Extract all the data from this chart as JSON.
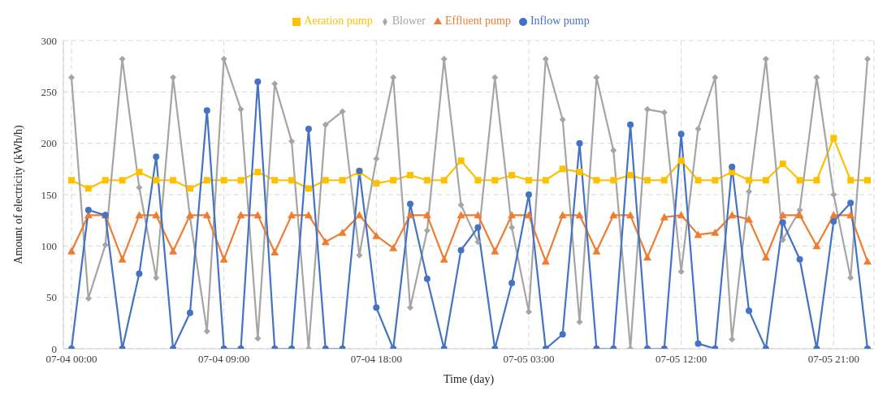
{
  "chart_data": {
    "type": "line",
    "xlabel": "Time (day)",
    "ylabel": "Amount of electricity (kWh/h)",
    "categories": [
      "07-04 00:00",
      null,
      null,
      null,
      null,
      null,
      null,
      null,
      null,
      "07-04 09:00",
      null,
      null,
      null,
      null,
      null,
      null,
      null,
      null,
      "07-04 18:00",
      null,
      null,
      null,
      null,
      null,
      null,
      null,
      null,
      "07-05 03:00",
      null,
      null,
      null,
      null,
      null,
      null,
      null,
      null,
      "07-05 12:00",
      null,
      null,
      null,
      null,
      null,
      null,
      null,
      null,
      "07-05 21:00",
      null,
      null
    ],
    "series": [
      {
        "name": "Inflow pump",
        "color": "#4472c4",
        "marker": "circle",
        "values": [
          0,
          135,
          130,
          0,
          73,
          187,
          0,
          35,
          232,
          0,
          0,
          260,
          0,
          0,
          214,
          0,
          0,
          173,
          40,
          0,
          141,
          68,
          0,
          96,
          118,
          0,
          64,
          150,
          0,
          14,
          200,
          0,
          0,
          218,
          0,
          0,
          209,
          5,
          0,
          177,
          37,
          0,
          123,
          87,
          0,
          124,
          142,
          0
        ]
      },
      {
        "name": "Effluent pump",
        "color": "#ed7d31",
        "marker": "triangle",
        "values": [
          95,
          130,
          130,
          87,
          130,
          130,
          95,
          130,
          130,
          87,
          130,
          130,
          94,
          130,
          130,
          104,
          113,
          130,
          110,
          98,
          130,
          130,
          87,
          130,
          130,
          95,
          130,
          130,
          85,
          130,
          130,
          95,
          130,
          130,
          89,
          128,
          130,
          111,
          113,
          130,
          126,
          89,
          130,
          130,
          100,
          130,
          130,
          85
        ]
      },
      {
        "name": "Blower",
        "color": "#a5a5a5",
        "marker": "diamond",
        "values": [
          264,
          49,
          101,
          282,
          157,
          69,
          264,
          128,
          17,
          282,
          233,
          10,
          258,
          202,
          0,
          218,
          231,
          91,
          185,
          264,
          40,
          115,
          282,
          140,
          104,
          264,
          118,
          36,
          282,
          223,
          26,
          264,
          193,
          0,
          233,
          230,
          75,
          214,
          264,
          9,
          153,
          282,
          106,
          135,
          264,
          150,
          69,
          282
        ]
      },
      {
        "name": "Aeration pump",
        "color": "#ffc000",
        "marker": "square",
        "values": [
          164,
          156,
          164,
          164,
          172,
          164,
          164,
          156,
          164,
          164,
          164,
          172,
          164,
          164,
          156,
          164,
          164,
          172,
          161,
          164,
          169,
          164,
          164,
          183,
          164,
          164,
          169,
          164,
          164,
          175,
          172,
          164,
          164,
          169,
          164,
          164,
          183,
          164,
          164,
          172,
          164,
          164,
          180,
          164,
          164,
          205,
          164,
          164
        ]
      }
    ],
    "ylim": [
      0,
      300
    ],
    "yticks": [
      0,
      50,
      100,
      150,
      200,
      250,
      300
    ],
    "grid": true,
    "legend": "top",
    "line_style": "solid"
  }
}
